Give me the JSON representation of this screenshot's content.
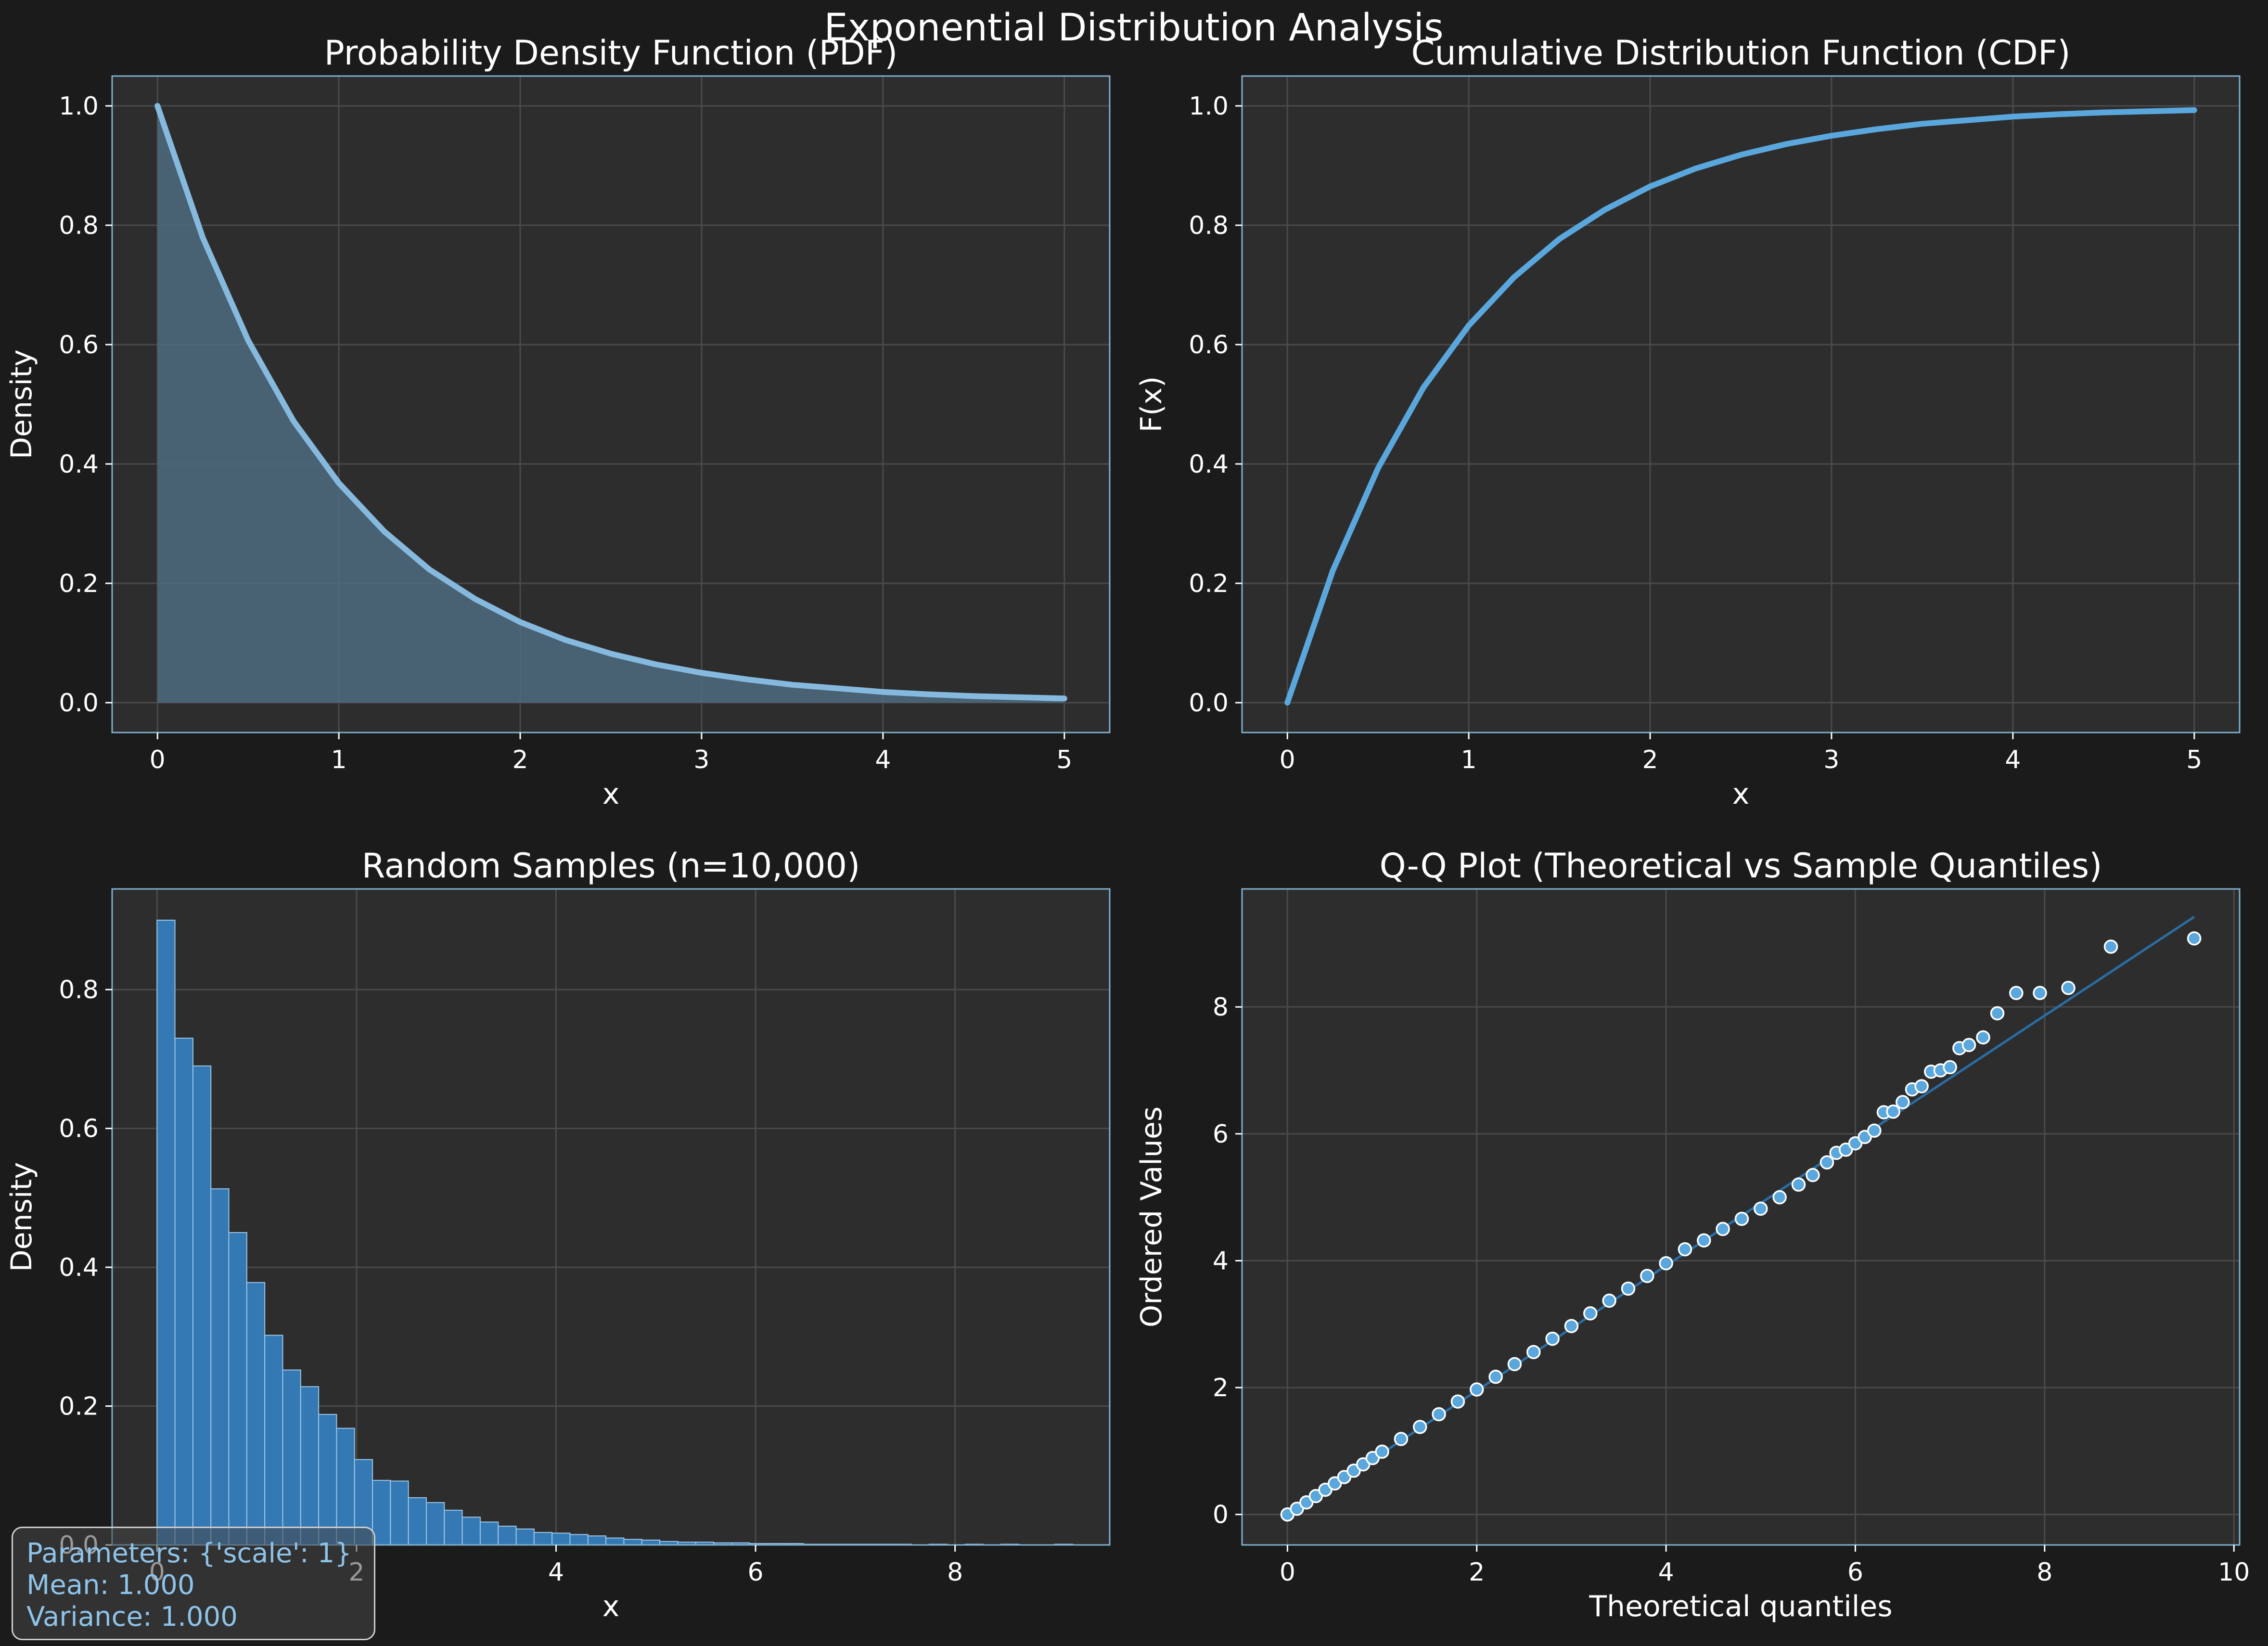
{
  "suptitle": "Exponential Distribution Analysis",
  "colors": {
    "figure_bg": "#1b1b1b",
    "axes_bg": "#2d2d2d",
    "spine": "#7fb0d0",
    "grid": "#4a4a4a",
    "pdf_line": "#86b9de",
    "pdf_fill": "#4d6b80",
    "cdf_line": "#5aa7dd",
    "hist_bar": "#3479b4",
    "qq_point": "#5aa7dd",
    "qq_line": "#2a6da3",
    "text": "#ffffff",
    "stats_text": "#8ec3ea"
  },
  "chart_data": [
    {
      "id": "pdf",
      "type": "area",
      "title": "Probability Density Function (PDF)",
      "xlabel": "x",
      "ylabel": "Density",
      "xlim": [
        -0.25,
        5.25
      ],
      "ylim": [
        -0.05,
        1.05
      ],
      "xticks": [
        0,
        1,
        2,
        3,
        4,
        5
      ],
      "yticks": [
        0.0,
        0.2,
        0.4,
        0.6,
        0.8,
        1.0
      ],
      "xtick_labels": [
        "0",
        "1",
        "2",
        "3",
        "4",
        "5"
      ],
      "ytick_labels": [
        "0.0",
        "0.2",
        "0.4",
        "0.6",
        "0.8",
        "1.0"
      ],
      "grid": true,
      "x": [
        0,
        0.25,
        0.5,
        0.75,
        1,
        1.25,
        1.5,
        1.75,
        2,
        2.25,
        2.5,
        2.75,
        3,
        3.25,
        3.5,
        3.75,
        4,
        4.25,
        4.5,
        4.75,
        5
      ],
      "y": [
        1.0,
        0.779,
        0.607,
        0.472,
        0.368,
        0.287,
        0.223,
        0.174,
        0.135,
        0.105,
        0.082,
        0.064,
        0.05,
        0.039,
        0.03,
        0.024,
        0.018,
        0.014,
        0.011,
        0.009,
        0.007
      ]
    },
    {
      "id": "cdf",
      "type": "line",
      "title": "Cumulative Distribution Function (CDF)",
      "xlabel": "x",
      "ylabel": "F(x)",
      "xlim": [
        -0.25,
        5.25
      ],
      "ylim": [
        -0.05,
        1.05
      ],
      "xticks": [
        0,
        1,
        2,
        3,
        4,
        5
      ],
      "yticks": [
        0.0,
        0.2,
        0.4,
        0.6,
        0.8,
        1.0
      ],
      "xtick_labels": [
        "0",
        "1",
        "2",
        "3",
        "4",
        "5"
      ],
      "ytick_labels": [
        "0.0",
        "0.2",
        "0.4",
        "0.6",
        "0.8",
        "1.0"
      ],
      "grid": true,
      "x": [
        0,
        0.25,
        0.5,
        0.75,
        1,
        1.25,
        1.5,
        1.75,
        2,
        2.25,
        2.5,
        2.75,
        3,
        3.25,
        3.5,
        3.75,
        4,
        4.25,
        4.5,
        4.75,
        5
      ],
      "y": [
        0.0,
        0.221,
        0.393,
        0.528,
        0.632,
        0.713,
        0.777,
        0.826,
        0.865,
        0.895,
        0.918,
        0.936,
        0.95,
        0.961,
        0.97,
        0.976,
        0.982,
        0.986,
        0.989,
        0.991,
        0.993
      ]
    },
    {
      "id": "hist",
      "type": "bar",
      "title": "Random Samples (n=10,000)",
      "xlabel": "x",
      "ylabel": "Density",
      "xlim": [
        -0.45,
        9.55
      ],
      "ylim": [
        0,
        0.945
      ],
      "xticks": [
        0,
        2,
        4,
        6,
        8
      ],
      "yticks": [
        0.0,
        0.2,
        0.4,
        0.6,
        0.8
      ],
      "xtick_labels": [
        "0",
        "2",
        "4",
        "6",
        "8"
      ],
      "ytick_labels": [
        "0.0",
        "0.2",
        "0.4",
        "0.6",
        "0.8"
      ],
      "grid": true,
      "bin_start": 0.0,
      "bin_width": 0.18,
      "values": [
        0.9,
        0.73,
        0.69,
        0.513,
        0.45,
        0.378,
        0.302,
        0.252,
        0.228,
        0.188,
        0.168,
        0.123,
        0.093,
        0.092,
        0.068,
        0.061,
        0.05,
        0.04,
        0.033,
        0.027,
        0.023,
        0.018,
        0.017,
        0.015,
        0.013,
        0.01,
        0.008,
        0.007,
        0.005,
        0.004,
        0.004,
        0.003,
        0.003,
        0.002,
        0.002,
        0.002,
        0.001,
        0.001,
        0.001,
        0.001,
        0.001,
        0.001,
        0.0,
        0.001,
        0.0,
        0.001,
        0.0,
        0.001,
        0.0,
        0.0,
        0.001
      ]
    },
    {
      "id": "qq",
      "type": "scatter",
      "title": "Q-Q Plot (Theoretical vs Sample Quantiles)",
      "xlabel": "Theoretical quantiles",
      "ylabel": "Ordered Values",
      "xlim": [
        -0.48,
        10.06
      ],
      "ylim": [
        -0.48,
        9.86
      ],
      "xticks": [
        0,
        2,
        4,
        6,
        8,
        10
      ],
      "yticks": [
        0,
        2,
        4,
        6,
        8
      ],
      "xtick_labels": [
        "0",
        "2",
        "4",
        "6",
        "8",
        "10"
      ],
      "ytick_labels": [
        "0",
        "2",
        "4",
        "6",
        "8"
      ],
      "grid": true,
      "fit_line": {
        "x": [
          0,
          9.58
        ],
        "y": [
          -0.02,
          9.42
        ]
      },
      "points": [
        [
          0,
          0
        ],
        [
          0.1,
          0.09
        ],
        [
          0.2,
          0.19
        ],
        [
          0.3,
          0.29
        ],
        [
          0.4,
          0.39
        ],
        [
          0.5,
          0.49
        ],
        [
          0.6,
          0.59
        ],
        [
          0.7,
          0.69
        ],
        [
          0.8,
          0.79
        ],
        [
          0.9,
          0.89
        ],
        [
          1.0,
          0.99
        ],
        [
          1.2,
          1.19
        ],
        [
          1.4,
          1.38
        ],
        [
          1.6,
          1.58
        ],
        [
          1.8,
          1.78
        ],
        [
          2.0,
          1.97
        ],
        [
          2.2,
          2.17
        ],
        [
          2.4,
          2.37
        ],
        [
          2.6,
          2.56
        ],
        [
          2.8,
          2.77
        ],
        [
          3.0,
          2.97
        ],
        [
          3.2,
          3.17
        ],
        [
          3.4,
          3.37
        ],
        [
          3.6,
          3.56
        ],
        [
          3.8,
          3.76
        ],
        [
          4.0,
          3.96
        ],
        [
          4.2,
          4.18
        ],
        [
          4.4,
          4.32
        ],
        [
          4.6,
          4.5
        ],
        [
          4.8,
          4.66
        ],
        [
          5.0,
          4.82
        ],
        [
          5.2,
          5.0
        ],
        [
          5.4,
          5.2
        ],
        [
          5.55,
          5.35
        ],
        [
          5.7,
          5.55
        ],
        [
          5.8,
          5.7
        ],
        [
          5.9,
          5.75
        ],
        [
          6.0,
          5.85
        ],
        [
          6.1,
          5.95
        ],
        [
          6.2,
          6.05
        ],
        [
          6.3,
          6.34
        ],
        [
          6.4,
          6.35
        ],
        [
          6.5,
          6.5
        ],
        [
          6.6,
          6.7
        ],
        [
          6.7,
          6.75
        ],
        [
          6.8,
          6.98
        ],
        [
          6.9,
          7.0
        ],
        [
          7.0,
          7.05
        ],
        [
          7.1,
          7.35
        ],
        [
          7.2,
          7.4
        ],
        [
          7.35,
          7.52
        ],
        [
          7.5,
          7.9
        ],
        [
          7.7,
          8.22
        ],
        [
          7.95,
          8.22
        ],
        [
          8.25,
          8.3
        ],
        [
          8.7,
          8.95
        ],
        [
          9.58,
          9.08
        ]
      ]
    }
  ],
  "stats_box": {
    "parameters": "Parameters: {'scale': 1}",
    "mean": "Mean: 1.000",
    "variance": "Variance: 1.000"
  }
}
